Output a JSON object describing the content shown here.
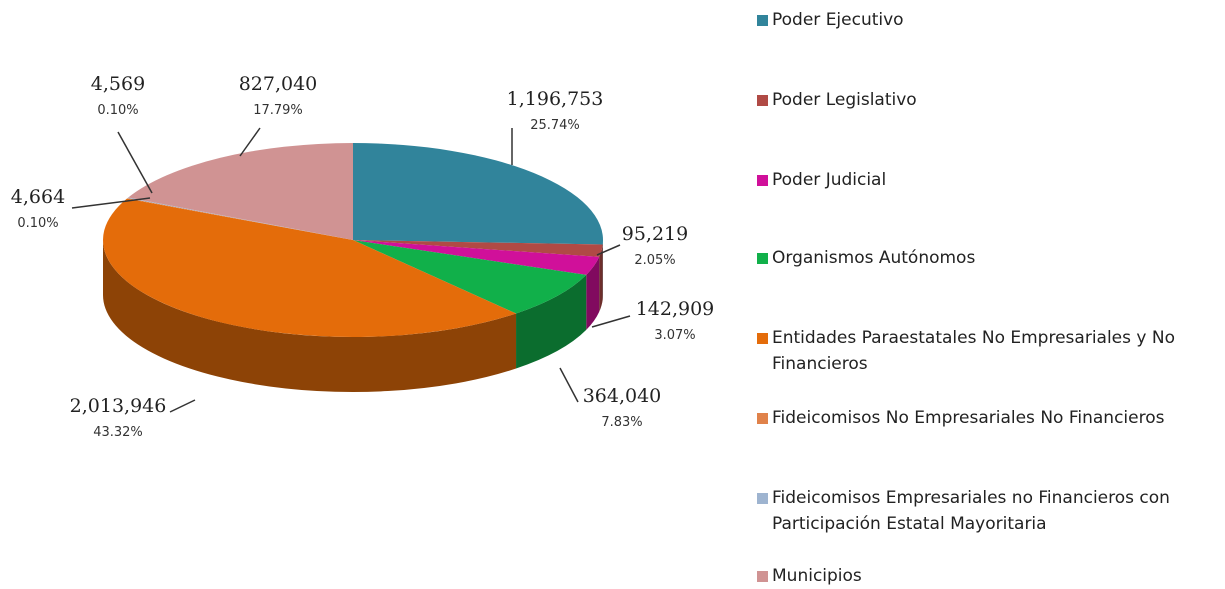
{
  "chart_data": {
    "type": "pie",
    "categories": [
      "Poder Ejecutivo",
      "Poder Legislativo",
      "Poder Judicial",
      "Organismos Autónomos",
      "Entidades Paraestatales  No Empresariales y No Financieros",
      "Fideicomisos No Empresariales No Financieros",
      "Fideicomisos Empresariales no Financieros con Participación Estatal Mayoritaria",
      "Municipios"
    ],
    "values": [
      1196753,
      95219,
      142909,
      364040,
      2013946,
      4664,
      4569,
      827040
    ],
    "value_labels": [
      "1,196,753",
      "95,219",
      "142,909",
      "364,040",
      "2,013,946",
      "4,664",
      "4,569",
      "827,040"
    ],
    "percentages": [
      25.74,
      2.05,
      3.07,
      7.83,
      43.32,
      0.1,
      0.1,
      17.79
    ],
    "percentage_labels": [
      "25.74%",
      "2.05%",
      "3.07%",
      "7.83%",
      "43.32%",
      "0.10%",
      "0.10%",
      "17.79%"
    ],
    "colors": [
      "#31849b",
      "#b04a45",
      "#d0109a",
      "#11b04a",
      "#e46c0a",
      "#e0824a",
      "#9eb4d0",
      "#d09393"
    ],
    "legend": "right"
  }
}
